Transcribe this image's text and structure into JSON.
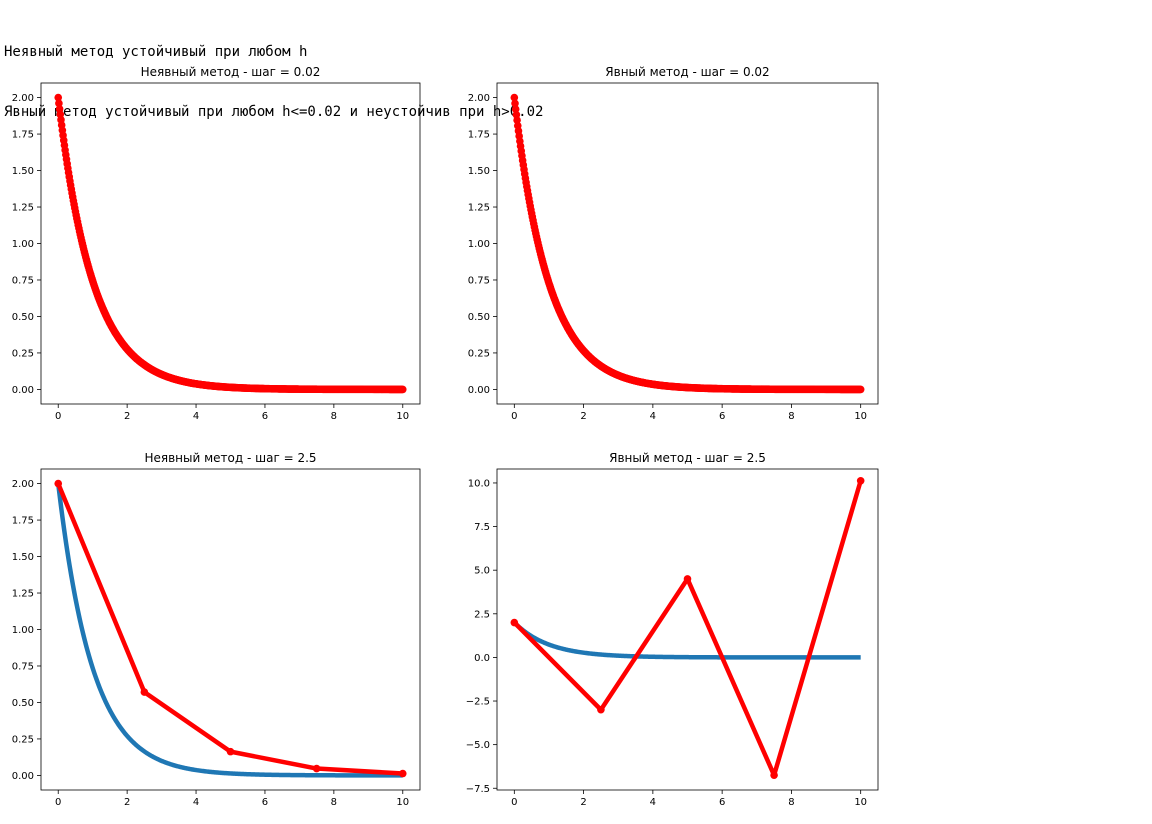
{
  "header": {
    "line1": "Неявный метод устойчивый при любом h",
    "line2": "Явный метод устойчивый при любом h<=0.02 и неустойчив при h>0.02"
  },
  "colors": {
    "exact": "#1f77b4",
    "numeric": "#ff0000"
  },
  "chart_data": [
    {
      "type": "line",
      "title": "Неявный метод - шаг = 0.02",
      "xlim": [
        -0.5,
        10.5
      ],
      "ylim": [
        -0.1,
        2.1
      ],
      "xticks": [
        0,
        2,
        4,
        6,
        8,
        10
      ],
      "xtick_labels": [
        "0",
        "2",
        "4",
        "6",
        "8",
        "10"
      ],
      "yticks": [
        0,
        0.25,
        0.5,
        0.75,
        1,
        1.25,
        1.5,
        1.75,
        2
      ],
      "ytick_labels": [
        "0.00",
        "0.25",
        "0.50",
        "0.75",
        "1.00",
        "1.25",
        "1.50",
        "1.75",
        "2.00"
      ],
      "exact_curve": {
        "function": "2*exp(-x)",
        "x_range": [
          0,
          10
        ],
        "color": "#1f77b4"
      },
      "numeric_series": {
        "method": "implicit",
        "step": 0.02,
        "y0": 2,
        "x_range": [
          0,
          10
        ],
        "color": "#ff0000",
        "marker": "o"
      },
      "grid": false
    },
    {
      "type": "line",
      "title": "Явный метод - шаг = 0.02",
      "xlim": [
        -0.5,
        10.5
      ],
      "ylim": [
        -0.1,
        2.1
      ],
      "xticks": [
        0,
        2,
        4,
        6,
        8,
        10
      ],
      "xtick_labels": [
        "0",
        "2",
        "4",
        "6",
        "8",
        "10"
      ],
      "yticks": [
        0,
        0.25,
        0.5,
        0.75,
        1,
        1.25,
        1.5,
        1.75,
        2
      ],
      "ytick_labels": [
        "0.00",
        "0.25",
        "0.50",
        "0.75",
        "1.00",
        "1.25",
        "1.50",
        "1.75",
        "2.00"
      ],
      "exact_curve": {
        "function": "2*exp(-x)",
        "x_range": [
          0,
          10
        ],
        "color": "#1f77b4"
      },
      "numeric_series": {
        "method": "explicit",
        "step": 0.02,
        "y0": 2,
        "x_range": [
          0,
          10
        ],
        "color": "#ff0000",
        "marker": "o"
      },
      "grid": false
    },
    {
      "type": "line",
      "title": "Неявный метод - шаг = 2.5",
      "xlim": [
        -0.5,
        10.5
      ],
      "ylim": [
        -0.1,
        2.1
      ],
      "xticks": [
        0,
        2,
        4,
        6,
        8,
        10
      ],
      "xtick_labels": [
        "0",
        "2",
        "4",
        "6",
        "8",
        "10"
      ],
      "yticks": [
        0,
        0.25,
        0.5,
        0.75,
        1,
        1.25,
        1.5,
        1.75,
        2
      ],
      "ytick_labels": [
        "0.00",
        "0.25",
        "0.50",
        "0.75",
        "1.00",
        "1.25",
        "1.50",
        "1.75",
        "2.00"
      ],
      "exact_curve": {
        "function": "2*exp(-x)",
        "x_range": [
          0,
          10
        ],
        "color": "#1f77b4"
      },
      "numeric_series": {
        "x": [
          0,
          2.5,
          5,
          7.5,
          10
        ],
        "y": [
          2,
          0.571,
          0.163,
          0.047,
          0.013
        ],
        "color": "#ff0000",
        "marker": "o"
      },
      "grid": false
    },
    {
      "type": "line",
      "title": "Явный метод - шаг = 2.5",
      "xlim": [
        -0.5,
        10.5
      ],
      "ylim": [
        -7.6,
        10.8
      ],
      "xticks": [
        0,
        2,
        4,
        6,
        8,
        10
      ],
      "xtick_labels": [
        "0",
        "2",
        "4",
        "6",
        "8",
        "10"
      ],
      "yticks": [
        -7.5,
        -5,
        -2.5,
        0,
        2.5,
        5,
        7.5,
        10
      ],
      "ytick_labels": [
        "−7.5",
        "−5.0",
        "−2.5",
        "0.0",
        "2.5",
        "5.0",
        "7.5",
        "10.0"
      ],
      "exact_curve": {
        "function": "2*exp(-x)",
        "x_range": [
          0,
          10
        ],
        "color": "#1f77b4"
      },
      "numeric_series": {
        "x": [
          0,
          2.5,
          5,
          7.5,
          10
        ],
        "y": [
          2,
          -3,
          4.5,
          -6.75,
          10.125
        ],
        "color": "#ff0000",
        "marker": "o"
      },
      "grid": false
    }
  ]
}
